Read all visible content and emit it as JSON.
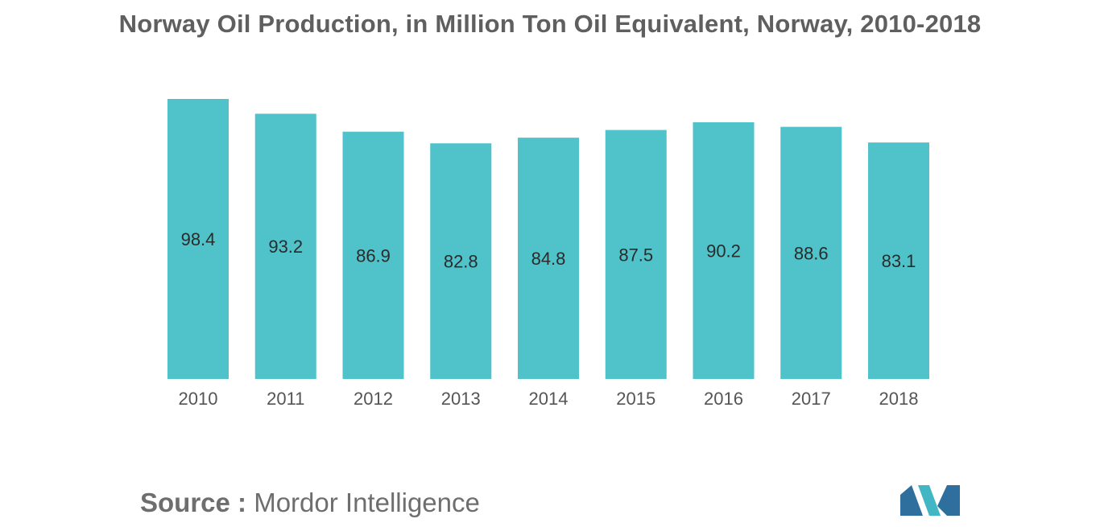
{
  "chart_data": {
    "type": "bar",
    "title": "Norway Oil Production, in Million Ton Oil Equivalent, Norway, 2010-2018",
    "categories": [
      "2010",
      "2011",
      "2012",
      "2013",
      "2014",
      "2015",
      "2016",
      "2017",
      "2018"
    ],
    "values": [
      98.4,
      93.2,
      86.9,
      82.8,
      84.8,
      87.5,
      90.2,
      88.6,
      83.1
    ],
    "value_labels": [
      "98.4",
      "93.2",
      "86.9",
      "82.8",
      "84.8",
      "87.5",
      "90.2",
      "88.6",
      "83.1"
    ],
    "xlabel": "",
    "ylabel": "",
    "ylim": [
      0,
      100
    ],
    "grid": false,
    "legend": "none",
    "bar_color": "#4fc3c9"
  },
  "source": {
    "label": "Source :",
    "text": "Mordor Intelligence"
  },
  "logo": {
    "icon": "mordor-intelligence-logo-icon",
    "colors": [
      "#2f6f9e",
      "#43b6c4"
    ]
  }
}
